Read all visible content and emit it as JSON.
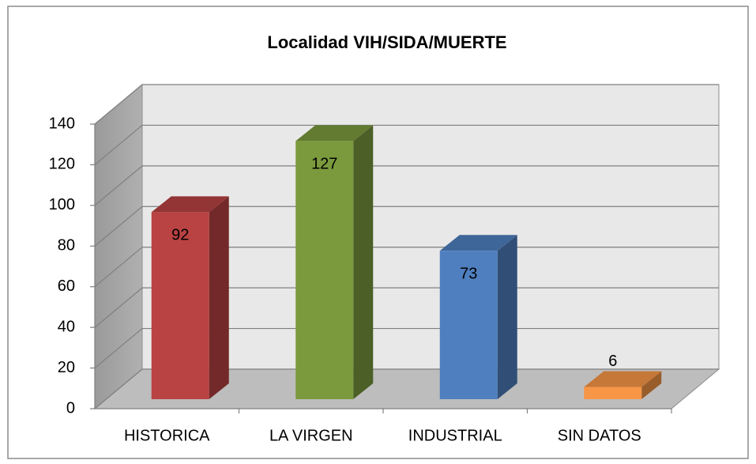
{
  "chart_data": {
    "type": "bar3d",
    "title": "Localidad VIH/SIDA/MUERTE",
    "categories": [
      "HISTORICA",
      "LA VIRGEN",
      "INDUSTRIAL",
      "SIN DATOS"
    ],
    "values": [
      92,
      127,
      73,
      6
    ],
    "colors": [
      "#b94242",
      "#7b9a3d",
      "#4f7fbf",
      "#f79646"
    ],
    "ylim": [
      0,
      140
    ],
    "yticks": [
      0,
      20,
      40,
      60,
      80,
      100,
      120,
      140
    ],
    "grid": true,
    "data_labels": true
  }
}
